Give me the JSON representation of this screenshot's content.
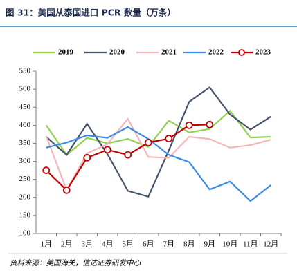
{
  "chart_data": {
    "type": "line",
    "title": "图 31：美国从泰国进口 PCR 数量（万条）",
    "source": "资料来源：美国海关，信达证券研发中心",
    "categories": [
      "1月",
      "2月",
      "3月",
      "4月",
      "5月",
      "6月",
      "7月",
      "8月",
      "9月",
      "10月",
      "11月",
      "12月"
    ],
    "series": [
      {
        "name": "2019",
        "color": "#92d050",
        "values": [
          400,
          318,
          365,
          350,
          362,
          340,
          413,
          380,
          390,
          440,
          366,
          368
        ]
      },
      {
        "name": "2020",
        "color": "#44546a",
        "values": [
          368,
          318,
          404,
          320,
          218,
          202,
          330,
          465,
          505,
          430,
          388,
          424
        ]
      },
      {
        "name": "2021",
        "color": "#f4b6b6",
        "values": [
          370,
          220,
          322,
          348,
          418,
          312,
          310,
          368,
          362,
          338,
          345,
          360
        ]
      },
      {
        "name": "2022",
        "color": "#3c8ce7",
        "values": [
          338,
          352,
          372,
          365,
          395,
          362,
          318,
          298,
          222,
          244,
          190,
          234
        ]
      },
      {
        "name": "2023",
        "color": "#c00000",
        "marker": "circle",
        "values": [
          275,
          220,
          310,
          332,
          318,
          352,
          363,
          400,
          402,
          null,
          null,
          null
        ]
      }
    ],
    "ylim": [
      100,
      550
    ],
    "yticks": [
      100,
      150,
      200,
      250,
      300,
      350,
      400,
      450,
      500,
      550
    ],
    "grid": false,
    "legend": "top"
  }
}
